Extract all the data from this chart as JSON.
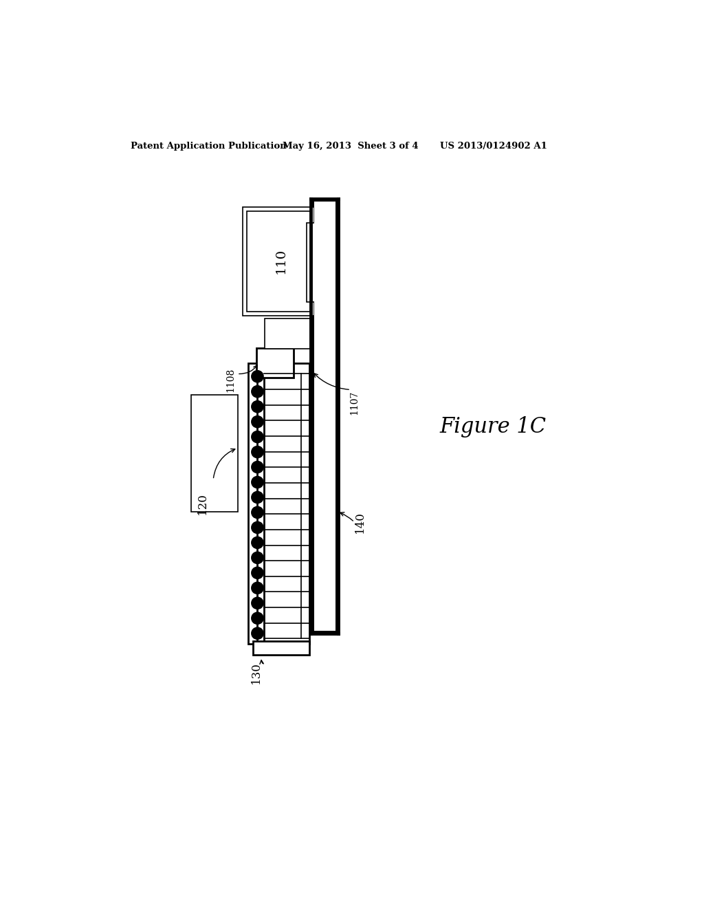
{
  "bg_color": "#ffffff",
  "line_color": "#000000",
  "header_left": "Patent Application Publication",
  "header_mid": "May 16, 2013  Sheet 3 of 4",
  "header_right": "US 2013/0124902 A1",
  "figure_label": "Figure 1C",
  "n_circles": 18,
  "n_rows": 18
}
